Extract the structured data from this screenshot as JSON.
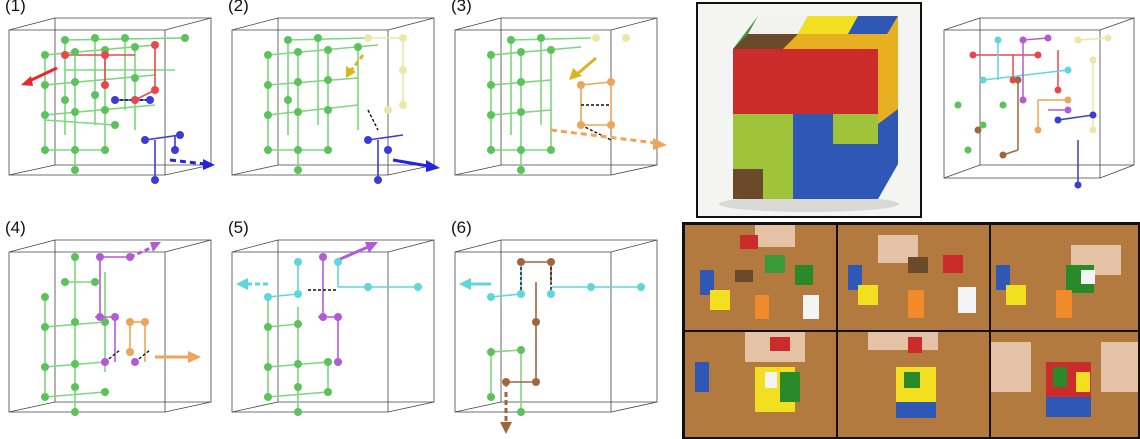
{
  "figure": {
    "panels": [
      {
        "label": "(1)"
      },
      {
        "label": "(2)"
      },
      {
        "label": "(3)"
      },
      {
        "label": "(4)"
      },
      {
        "label": "(5)"
      },
      {
        "label": "(6)"
      }
    ],
    "colors": {
      "grid_green": "#7ed67e",
      "node_green": "#5cc25c",
      "red": "#e8484b",
      "blue": "#3b3bd8",
      "cream": "#ece6a8",
      "gold": "#d9b520",
      "orange": "#eea45a",
      "purple": "#b35ad6",
      "cyan": "#5fd6dc",
      "brown": "#a0673e"
    }
  }
}
